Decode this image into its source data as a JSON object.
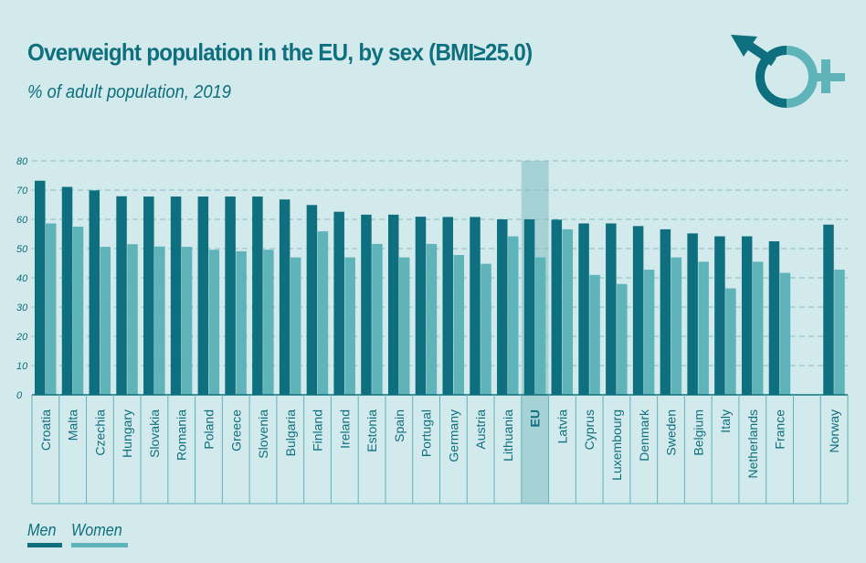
{
  "header": {
    "title": "Overweight population in the EU, by sex (BMI≥25.0)",
    "subtitle": "% of adult population, 2019"
  },
  "icons": {
    "sex_symbol": "male-female-symbol-icon"
  },
  "colors": {
    "background": "#d3eaed",
    "men": "#0e6f7e",
    "women": "#5fb4ba",
    "highlight": "#a6d2d6",
    "text": "#0e6f7e",
    "grid": "#86bcc2"
  },
  "legend": {
    "men_label": "Men",
    "women_label": "Women"
  },
  "chart_data": {
    "type": "bar",
    "title": "Overweight population in the EU, by sex (BMI≥25.0)",
    "subtitle": "% of adult population, 2019",
    "ylim": [
      0,
      80
    ],
    "yticks": [
      0,
      10,
      20,
      30,
      40,
      50,
      60,
      70,
      80
    ],
    "grid": true,
    "legend_position": "bottom-left",
    "highlight_category": "EU",
    "categories": [
      "Croatia",
      "Malta",
      "Czechia",
      "Hungary",
      "Slovakia",
      "Romania",
      "Poland",
      "Greece",
      "Slovenia",
      "Bulgaria",
      "Finland",
      "Ireland",
      "Estonia",
      "Spain",
      "Portugal",
      "Germany",
      "Austria",
      "Lithuania",
      "EU",
      "Latvia",
      "Cyprus",
      "Luxembourg",
      "Denmark",
      "Sweden",
      "Belgium",
      "Italy",
      "Netherlands",
      "France",
      "",
      "Norway"
    ],
    "series": [
      {
        "name": "Men",
        "values": [
          73.2,
          71.1,
          69.9,
          67.9,
          67.8,
          67.8,
          67.8,
          67.8,
          67.8,
          66.8,
          64.9,
          62.6,
          61.6,
          61.6,
          60.9,
          60.8,
          60.8,
          60.0,
          60.0,
          59.9,
          58.6,
          58.6,
          57.7,
          56.6,
          55.2,
          54.2,
          54.2,
          52.5,
          null,
          58.2
        ]
      },
      {
        "name": "Women",
        "values": [
          58.6,
          57.5,
          50.6,
          51.5,
          50.7,
          50.6,
          49.6,
          49.1,
          49.6,
          47.0,
          55.9,
          47.0,
          51.6,
          47.0,
          51.6,
          47.8,
          44.8,
          54.2,
          47.0,
          56.6,
          41.0,
          37.9,
          42.8,
          47.0,
          45.5,
          36.4,
          45.5,
          41.7,
          null,
          42.8
        ]
      }
    ]
  }
}
